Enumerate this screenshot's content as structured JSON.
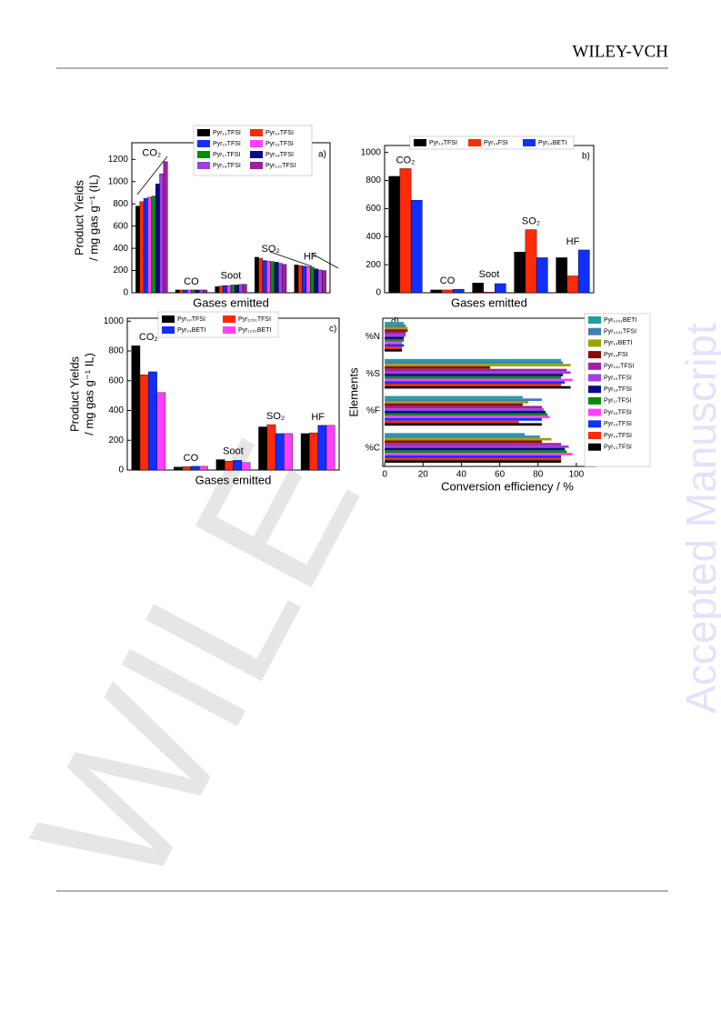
{
  "header": {
    "brand": "WILEY-VCH"
  },
  "watermark": "WILE",
  "side_text": "Accepted Manuscript",
  "chart_data": [
    {
      "type": "bar",
      "panel_label": "a)",
      "xlabel": "Gases  emitted",
      "ylabel": [
        "Product Yields",
        "/ mg gas g⁻¹ (IL)"
      ],
      "categories": [
        "CO₂",
        "CO",
        "Soot",
        "SO₂",
        "HF"
      ],
      "ylim": [
        0,
        1350
      ],
      "yticks": [
        0,
        200,
        400,
        600,
        800,
        1000,
        1200
      ],
      "series": [
        {
          "name": "Pyr₁₃TFSI",
          "color": "#000000",
          "values": [
            780,
            25,
            55,
            320,
            250
          ]
        },
        {
          "name": "Pyr₁₄TFSI",
          "color": "#ff2a0a",
          "values": [
            820,
            25,
            60,
            310,
            245
          ]
        },
        {
          "name": "Pyr₁₅TFSI",
          "color": "#1030ff",
          "values": [
            850,
            25,
            65,
            290,
            240
          ]
        },
        {
          "name": "Pyr₁₆TFSI",
          "color": "#ff40ff",
          "values": [
            860,
            25,
            65,
            285,
            235
          ]
        },
        {
          "name": "Pyr₁₇TFSI",
          "color": "#0a8a0a",
          "values": [
            870,
            25,
            70,
            280,
            230
          ]
        },
        {
          "name": "Pyr₁₈TFSI",
          "color": "#0a0a8a",
          "values": [
            980,
            25,
            70,
            275,
            215
          ]
        },
        {
          "name": "Pyr₁₉TFSI",
          "color": "#a040e0",
          "values": [
            1070,
            25,
            75,
            265,
            205
          ]
        },
        {
          "name": "Pyr₁₁₀TFSI",
          "color": "#a020a0",
          "values": [
            1180,
            25,
            75,
            255,
            200
          ]
        }
      ]
    },
    {
      "type": "bar",
      "panel_label": "b)",
      "xlabel": "Gases  emitted",
      "categories": [
        "CO₂",
        "CO",
        "Soot",
        "SO₂",
        "HF"
      ],
      "ylim": [
        0,
        1050
      ],
      "yticks": [
        0,
        200,
        400,
        600,
        800,
        1000
      ],
      "series": [
        {
          "name": "Pyr₁₄TFSI",
          "color": "#000000",
          "values": [
            830,
            20,
            70,
            290,
            250
          ]
        },
        {
          "name": "Pyr₁₄FSI",
          "color": "#ff2a0a",
          "values": [
            885,
            20,
            5,
            450,
            120
          ]
        },
        {
          "name": "Pyr₁₄BETI",
          "color": "#1030ff",
          "values": [
            660,
            25,
            65,
            250,
            305
          ]
        }
      ]
    },
    {
      "type": "bar",
      "panel_label": "c)",
      "xlabel": "Gases  emitted",
      "ylabel": [
        "Product Yields",
        "/ mg gas g⁻¹ IL)"
      ],
      "categories": [
        "CO₂",
        "CO",
        "Soot",
        "SO₂",
        "HF"
      ],
      "ylim": [
        0,
        1020
      ],
      "yticks": [
        0,
        200,
        400,
        600,
        800,
        1000
      ],
      "series": [
        {
          "name": "Pyr₁₄TFSI",
          "color": "#000000",
          "values": [
            835,
            20,
            70,
            290,
            245
          ]
        },
        {
          "name": "Pyr₁₂₀₁TFSI",
          "color": "#ff2a0a",
          "values": [
            640,
            22,
            60,
            305,
            250
          ]
        },
        {
          "name": "Pyr₁₄BETI",
          "color": "#1030ff",
          "values": [
            660,
            25,
            65,
            245,
            300
          ]
        },
        {
          "name": "Pyr₁₂₀₁BETI",
          "color": "#ff40ff",
          "values": [
            520,
            25,
            50,
            245,
            300
          ]
        }
      ]
    },
    {
      "type": "barh",
      "panel_label": "d)",
      "xlabel": "Conversion efficiency / %",
      "ylabel": [
        "Elements"
      ],
      "categories": [
        "%C",
        "%F",
        "%S",
        "%N"
      ],
      "xlim": [
        -1,
        110
      ],
      "xticks": [
        0,
        20,
        40,
        60,
        80,
        100
      ],
      "series": [
        {
          "name": "Pyr₁₂₀₁BETI",
          "color": "#20a0a0",
          "values": [
            73,
            72,
            92,
            10
          ]
        },
        {
          "name": "Pyr₁₂₀₁TFSI",
          "color": "#4080b0",
          "values": [
            81,
            82,
            93,
            11
          ]
        },
        {
          "name": "Pyr₁₄BETI",
          "color": "#a0a000",
          "values": [
            87,
            75,
            97,
            12
          ]
        },
        {
          "name": "Pyr₁₄FSI",
          "color": "#8a0a0a",
          "values": [
            82,
            72,
            55,
            12
          ]
        },
        {
          "name": "Pyr₁₁₀TFSI",
          "color": "#a020a0",
          "values": [
            92,
            82,
            95,
            11
          ]
        },
        {
          "name": "Pyr₁₉TFSI",
          "color": "#a040e0",
          "values": [
            96,
            83,
            97,
            11
          ]
        },
        {
          "name": "Pyr₁₈TFSI",
          "color": "#0a0a8a",
          "values": [
            94,
            84,
            93,
            10
          ]
        },
        {
          "name": "Pyr₁₇TFSI",
          "color": "#0a8a0a",
          "values": [
            95,
            85,
            92,
            10
          ]
        },
        {
          "name": "Pyr₁₆TFSI",
          "color": "#ff40ff",
          "values": [
            98,
            86,
            98,
            9
          ]
        },
        {
          "name": "Pyr₁₅TFSI",
          "color": "#1030ff",
          "values": [
            92,
            82,
            94,
            10
          ]
        },
        {
          "name": "Pyr₁₄TFSI",
          "color": "#ff2a0a",
          "values": [
            92,
            70,
            92,
            9
          ]
        },
        {
          "name": "Pyr₁₃TFSI",
          "color": "#000000",
          "values": [
            92,
            82,
            97,
            9
          ]
        }
      ]
    }
  ]
}
